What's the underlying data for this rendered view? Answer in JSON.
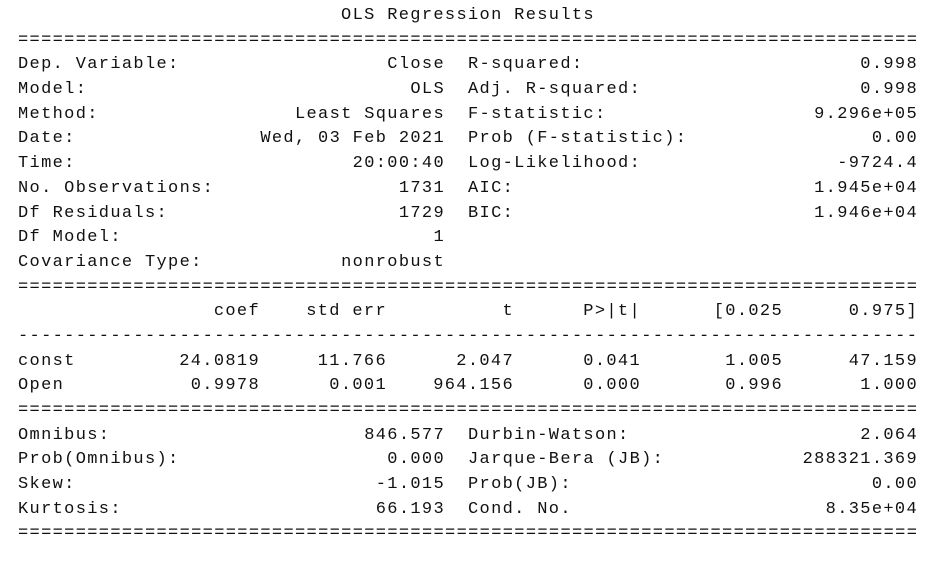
{
  "title": "OLS Regression Results",
  "separators": {
    "double": "=",
    "single": "-",
    "width": 78
  },
  "model_info": [
    {
      "left_label": "Dep. Variable:",
      "left_value": "Close",
      "right_label": "R-squared:",
      "right_value": "0.998"
    },
    {
      "left_label": "Model:",
      "left_value": "OLS",
      "right_label": "Adj. R-squared:",
      "right_value": "0.998"
    },
    {
      "left_label": "Method:",
      "left_value": "Least Squares",
      "right_label": "F-statistic:",
      "right_value": "9.296e+05"
    },
    {
      "left_label": "Date:",
      "left_value": "Wed, 03 Feb 2021",
      "right_label": "Prob (F-statistic):",
      "right_value": "0.00"
    },
    {
      "left_label": "Time:",
      "left_value": "20:00:40",
      "right_label": "Log-Likelihood:",
      "right_value": "-9724.4"
    },
    {
      "left_label": "No. Observations:",
      "left_value": "1731",
      "right_label": "AIC:",
      "right_value": "1.945e+04"
    },
    {
      "left_label": "Df Residuals:",
      "left_value": "1729",
      "right_label": "BIC:",
      "right_value": "1.946e+04"
    },
    {
      "left_label": "Df Model:",
      "left_value": "1",
      "right_label": "",
      "right_value": ""
    },
    {
      "left_label": "Covariance Type:",
      "left_value": "nonrobust",
      "right_label": "",
      "right_value": ""
    }
  ],
  "coef_table": {
    "headers": [
      "coef",
      "std err",
      "t",
      "P>|t|",
      "[0.025",
      "0.975]"
    ],
    "rows": [
      {
        "name": "const",
        "values": [
          "24.0819",
          "11.766",
          "2.047",
          "0.041",
          "1.005",
          "47.159"
        ]
      },
      {
        "name": "Open",
        "values": [
          "0.9978",
          "0.001",
          "964.156",
          "0.000",
          "0.996",
          "1.000"
        ]
      }
    ]
  },
  "diagnostics": [
    {
      "left_label": "Omnibus:",
      "left_value": "846.577",
      "right_label": "Durbin-Watson:",
      "right_value": "2.064"
    },
    {
      "left_label": "Prob(Omnibus):",
      "left_value": "0.000",
      "right_label": "Jarque-Bera (JB):",
      "right_value": "288321.369"
    },
    {
      "left_label": "Skew:",
      "left_value": "-1.015",
      "right_label": "Prob(JB):",
      "right_value": "0.00"
    },
    {
      "left_label": "Kurtosis:",
      "left_value": "66.193",
      "right_label": "Cond. No.",
      "right_value": "8.35e+04"
    }
  ]
}
